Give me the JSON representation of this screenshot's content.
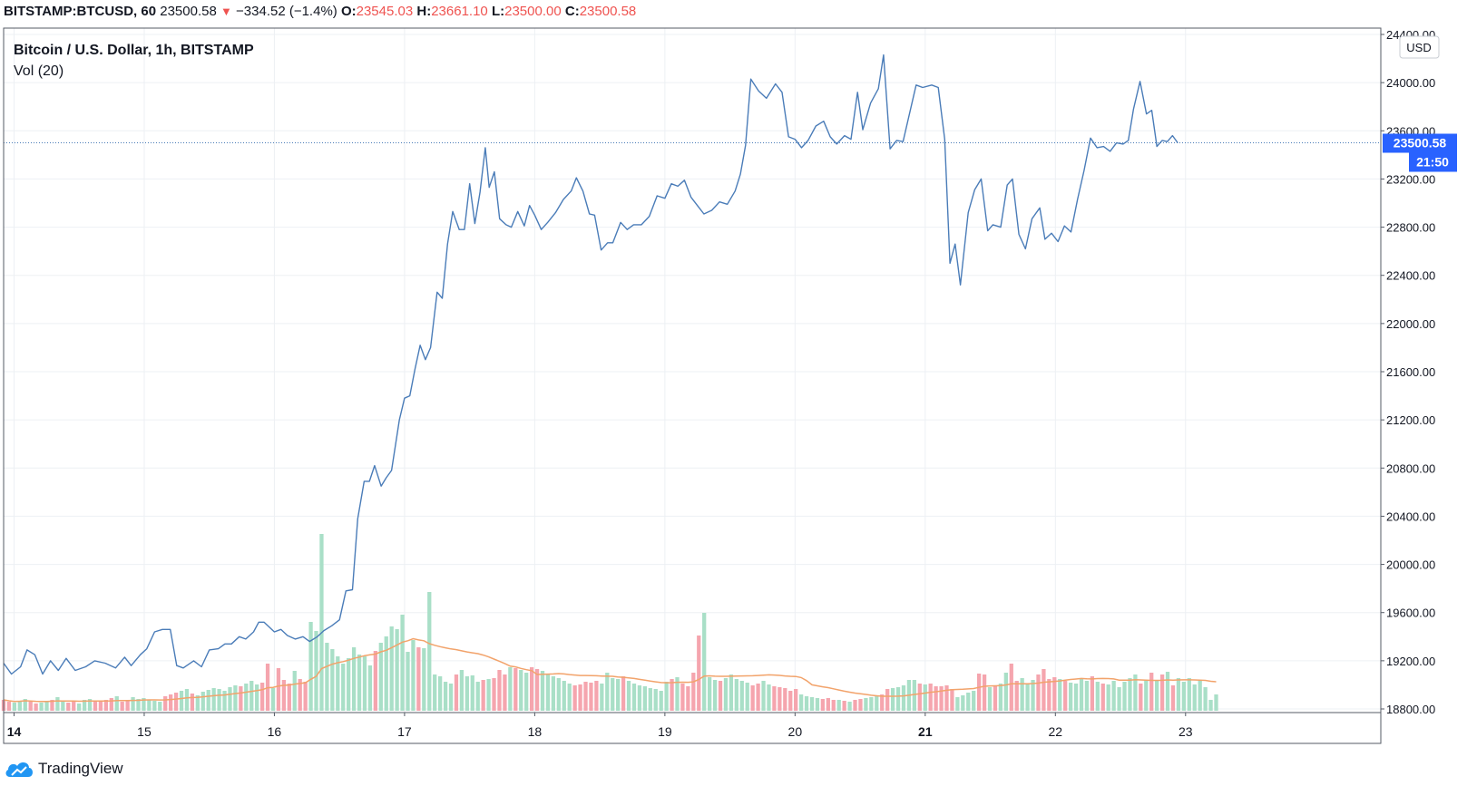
{
  "header": {
    "symbol": "BITSTAMP:BTCUSD, 60",
    "last": "23500.58",
    "change_arrow": "▼",
    "change": "−334.52 (−1.4%)",
    "o_label": "O:",
    "o_value": "23545.03",
    "h_label": "H:",
    "h_value": "23661.10",
    "l_label": "L:",
    "l_value": "23500.00",
    "c_label": "C:",
    "c_value": "23500.58"
  },
  "legend": {
    "title": "Bitcoin / U.S. Dollar, 1h, BITSTAMP",
    "vol": "Vol (20)"
  },
  "axis_badges": {
    "currency": "USD",
    "price_label": "23500.58",
    "countdown": "21:50"
  },
  "footer": {
    "brand": "TradingView",
    "logo_icon": "tradingview-cloud-logo"
  },
  "colors": {
    "price_line": "#4a7cb8",
    "volume_up": "#a9dfc7",
    "volume_down": "#f5a5ae",
    "vol_ma": "#f2a36b",
    "badge": "#2962ff",
    "grid": "#edf0f4"
  },
  "chart_data": {
    "type": "line",
    "title": "Bitcoin / U.S. Dollar, 1h, BITSTAMP",
    "xlabel": "",
    "ylabel": "",
    "ylim": [
      18800,
      24400
    ],
    "xlim": [
      13.92,
      24.5
    ],
    "y_ticks": [
      "18800.00",
      "19200.00",
      "19600.00",
      "20000.00",
      "20400.00",
      "20800.00",
      "21200.00",
      "21600.00",
      "22000.00",
      "22400.00",
      "22800.00",
      "23200.00",
      "23600.00",
      "24000.00",
      "24400.00"
    ],
    "x_ticks": [
      {
        "label": "14",
        "day": 14,
        "bold": true
      },
      {
        "label": "15",
        "day": 15,
        "bold": false
      },
      {
        "label": "16",
        "day": 16,
        "bold": false
      },
      {
        "label": "17",
        "day": 17,
        "bold": false
      },
      {
        "label": "18",
        "day": 18,
        "bold": false
      },
      {
        "label": "19",
        "day": 19,
        "bold": false
      },
      {
        "label": "20",
        "day": 20,
        "bold": false
      },
      {
        "label": "21",
        "day": 21,
        "bold": true
      },
      {
        "label": "22",
        "day": 22,
        "bold": false
      },
      {
        "label": "23",
        "day": 23,
        "bold": false
      }
    ],
    "grid": true,
    "last_price": 23500.58,
    "series": [
      {
        "name": "BTCUSD",
        "points": [
          [
            13.92,
            19180
          ],
          [
            13.98,
            19090
          ],
          [
            14.05,
            19150
          ],
          [
            14.1,
            19290
          ],
          [
            14.16,
            19250
          ],
          [
            14.22,
            19090
          ],
          [
            14.28,
            19200
          ],
          [
            14.34,
            19120
          ],
          [
            14.4,
            19220
          ],
          [
            14.47,
            19120
          ],
          [
            14.55,
            19150
          ],
          [
            14.62,
            19200
          ],
          [
            14.7,
            19180
          ],
          [
            14.78,
            19140
          ],
          [
            14.85,
            19230
          ],
          [
            14.9,
            19160
          ],
          [
            14.97,
            19250
          ],
          [
            15.02,
            19300
          ],
          [
            15.08,
            19440
          ],
          [
            15.14,
            19460
          ],
          [
            15.2,
            19460
          ],
          [
            15.25,
            19160
          ],
          [
            15.3,
            19140
          ],
          [
            15.38,
            19200
          ],
          [
            15.44,
            19150
          ],
          [
            15.5,
            19290
          ],
          [
            15.57,
            19300
          ],
          [
            15.62,
            19340
          ],
          [
            15.67,
            19340
          ],
          [
            15.73,
            19400
          ],
          [
            15.78,
            19380
          ],
          [
            15.84,
            19440
          ],
          [
            15.88,
            19520
          ],
          [
            15.92,
            19520
          ],
          [
            16.0,
            19440
          ],
          [
            16.05,
            19460
          ],
          [
            16.1,
            19410
          ],
          [
            16.16,
            19380
          ],
          [
            16.22,
            19400
          ],
          [
            16.27,
            19360
          ],
          [
            16.33,
            19400
          ],
          [
            16.38,
            19450
          ],
          [
            16.44,
            19490
          ],
          [
            16.5,
            19540
          ],
          [
            16.55,
            19780
          ],
          [
            16.6,
            19790
          ],
          [
            16.64,
            20380
          ],
          [
            16.69,
            20690
          ],
          [
            16.73,
            20690
          ],
          [
            16.77,
            20820
          ],
          [
            16.82,
            20650
          ],
          [
            16.86,
            20720
          ],
          [
            16.9,
            20780
          ],
          [
            16.96,
            21200
          ],
          [
            17.0,
            21380
          ],
          [
            17.04,
            21400
          ],
          [
            17.08,
            21620
          ],
          [
            17.12,
            21820
          ],
          [
            17.16,
            21700
          ],
          [
            17.2,
            21800
          ],
          [
            17.25,
            22260
          ],
          [
            17.29,
            22210
          ],
          [
            17.33,
            22660
          ],
          [
            17.37,
            22930
          ],
          [
            17.42,
            22780
          ],
          [
            17.46,
            22780
          ],
          [
            17.5,
            23160
          ],
          [
            17.54,
            22830
          ],
          [
            17.58,
            23090
          ],
          [
            17.62,
            23460
          ],
          [
            17.65,
            23130
          ],
          [
            17.69,
            23260
          ],
          [
            17.73,
            22870
          ],
          [
            17.78,
            22820
          ],
          [
            17.82,
            22800
          ],
          [
            17.87,
            22930
          ],
          [
            17.92,
            22810
          ],
          [
            17.96,
            22980
          ],
          [
            18.0,
            22900
          ],
          [
            18.05,
            22780
          ],
          [
            18.1,
            22840
          ],
          [
            18.16,
            22920
          ],
          [
            18.22,
            23030
          ],
          [
            18.28,
            23100
          ],
          [
            18.32,
            23210
          ],
          [
            18.37,
            23100
          ],
          [
            18.42,
            22910
          ],
          [
            18.46,
            22900
          ],
          [
            18.51,
            22610
          ],
          [
            18.56,
            22670
          ],
          [
            18.6,
            22670
          ],
          [
            18.66,
            22840
          ],
          [
            18.71,
            22780
          ],
          [
            18.76,
            22820
          ],
          [
            18.82,
            22820
          ],
          [
            18.88,
            22890
          ],
          [
            18.94,
            23060
          ],
          [
            19.0,
            23040
          ],
          [
            19.05,
            23160
          ],
          [
            19.1,
            23140
          ],
          [
            19.15,
            23190
          ],
          [
            19.2,
            23050
          ],
          [
            19.25,
            22980
          ],
          [
            19.3,
            22910
          ],
          [
            19.36,
            22940
          ],
          [
            19.42,
            23010
          ],
          [
            19.48,
            22990
          ],
          [
            19.54,
            23100
          ],
          [
            19.58,
            23240
          ],
          [
            19.62,
            23480
          ],
          [
            19.66,
            24030
          ],
          [
            19.72,
            23930
          ],
          [
            19.78,
            23870
          ],
          [
            19.85,
            23990
          ],
          [
            19.9,
            23920
          ],
          [
            19.95,
            23550
          ],
          [
            20.0,
            23530
          ],
          [
            20.05,
            23460
          ],
          [
            20.1,
            23520
          ],
          [
            20.16,
            23640
          ],
          [
            20.22,
            23680
          ],
          [
            20.27,
            23550
          ],
          [
            20.32,
            23490
          ],
          [
            20.38,
            23560
          ],
          [
            20.43,
            23530
          ],
          [
            20.48,
            23920
          ],
          [
            20.52,
            23610
          ],
          [
            20.58,
            23830
          ],
          [
            20.64,
            23950
          ],
          [
            20.68,
            24230
          ],
          [
            20.73,
            23450
          ],
          [
            20.78,
            23520
          ],
          [
            20.83,
            23510
          ],
          [
            20.87,
            23700
          ],
          [
            20.93,
            23980
          ],
          [
            20.98,
            23960
          ],
          [
            21.05,
            23980
          ],
          [
            21.1,
            23960
          ],
          [
            21.15,
            23530
          ],
          [
            21.19,
            22500
          ],
          [
            21.23,
            22660
          ],
          [
            21.27,
            22320
          ],
          [
            21.33,
            22920
          ],
          [
            21.38,
            23110
          ],
          [
            21.43,
            23200
          ],
          [
            21.48,
            22770
          ],
          [
            21.52,
            22820
          ],
          [
            21.58,
            22800
          ],
          [
            21.63,
            23150
          ],
          [
            21.67,
            23200
          ],
          [
            21.72,
            22740
          ],
          [
            21.77,
            22620
          ],
          [
            21.82,
            22870
          ],
          [
            21.88,
            22960
          ],
          [
            21.92,
            22700
          ],
          [
            21.97,
            22750
          ],
          [
            22.02,
            22680
          ],
          [
            22.07,
            22810
          ],
          [
            22.12,
            22760
          ],
          [
            22.17,
            23030
          ],
          [
            22.22,
            23270
          ],
          [
            22.27,
            23540
          ],
          [
            22.32,
            23460
          ],
          [
            22.37,
            23470
          ],
          [
            22.42,
            23430
          ],
          [
            22.47,
            23500
          ],
          [
            22.52,
            23490
          ],
          [
            22.56,
            23520
          ],
          [
            22.6,
            23780
          ],
          [
            22.65,
            24010
          ],
          [
            22.7,
            23740
          ],
          [
            22.74,
            23770
          ],
          [
            22.78,
            23470
          ],
          [
            22.82,
            23520
          ],
          [
            22.86,
            23510
          ],
          [
            22.9,
            23560
          ],
          [
            22.94,
            23500
          ]
        ]
      },
      {
        "name": "Vol (20)",
        "bars_day_start": 13.92,
        "bars_day_step": 0.0414,
        "bars": [
          12,
          10,
          9,
          11,
          13,
          10,
          8,
          9,
          11,
          12,
          15,
          10,
          9,
          11,
          8,
          12,
          13,
          10,
          11,
          12,
          14,
          16,
          10,
          12,
          15,
          13,
          14,
          12,
          11,
          10,
          16,
          18,
          20,
          22,
          24,
          19,
          17,
          21,
          23,
          25,
          24,
          22,
          26,
          28,
          27,
          30,
          33,
          29,
          31,
          52,
          25,
          47,
          34,
          30,
          44,
          35,
          32,
          98,
          88,
          195,
          75,
          68,
          60,
          52,
          58,
          70,
          62,
          60,
          50,
          66,
          75,
          82,
          93,
          90,
          106,
          65,
          78,
          70,
          69,
          131,
          40,
          38,
          32,
          30,
          40,
          45,
          38,
          39,
          32,
          34,
          35,
          36,
          45,
          40,
          48,
          47,
          45,
          42,
          48,
          46,
          44,
          41,
          38,
          36,
          33,
          30,
          28,
          29,
          32,
          31,
          33,
          30,
          42,
          36,
          35,
          38,
          33,
          30,
          28,
          27,
          25,
          24,
          22,
          32,
          35,
          37,
          30,
          27,
          42,
          83,
          108,
          37,
          34,
          33,
          36,
          40,
          35,
          33,
          31,
          28,
          30,
          33,
          29,
          27,
          26,
          25,
          22,
          24,
          18,
          16,
          15,
          14,
          13,
          14,
          12,
          12,
          11,
          10,
          12,
          13,
          14,
          15,
          17,
          18,
          24,
          25,
          26,
          28,
          34,
          34,
          30,
          29,
          30,
          27,
          27,
          28,
          24,
          15,
          17,
          20,
          22,
          41,
          40,
          26,
          27,
          30,
          42,
          52,
          33,
          36,
          30,
          34,
          40,
          46,
          35,
          37,
          35,
          33,
          31,
          30,
          35,
          33,
          38,
          32,
          30,
          29,
          33,
          26,
          32,
          36,
          40,
          30,
          34,
          42,
          33,
          40,
          43,
          28,
          36,
          32,
          36,
          29,
          34,
          26,
          12,
          18
        ]
      }
    ]
  }
}
